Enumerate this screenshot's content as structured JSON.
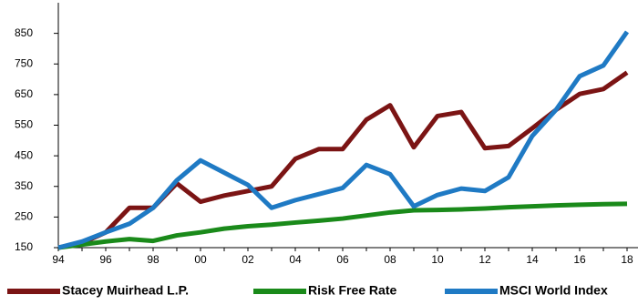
{
  "chart_data": {
    "type": "line",
    "categories": [
      "94",
      null,
      "96",
      null,
      "98",
      null,
      "00",
      null,
      "02",
      null,
      "04",
      null,
      "06",
      null,
      "08",
      null,
      "10",
      null,
      "12",
      null,
      "14",
      null,
      "16",
      null,
      "18"
    ],
    "series": [
      {
        "name": "Stacey Muirhead L.P.",
        "color": "#7b1414",
        "values": [
          150,
          165,
          200,
          280,
          280,
          360,
          300,
          320,
          335,
          350,
          440,
          472,
          472,
          568,
          615,
          478,
          580,
          593,
          475,
          482,
          540,
          600,
          652,
          668,
          722
        ]
      },
      {
        "name": "Risk Free Rate",
        "color": "#1a8a1a",
        "values": [
          150,
          160,
          170,
          178,
          172,
          190,
          200,
          212,
          220,
          225,
          232,
          238,
          245,
          255,
          265,
          272,
          273,
          275,
          278,
          282,
          285,
          288,
          290,
          292,
          293
        ]
      },
      {
        "name": "MSCI World Index",
        "color": "#1f7ac4",
        "values": [
          150,
          170,
          200,
          228,
          280,
          370,
          435,
          395,
          355,
          280,
          305,
          325,
          345,
          420,
          390,
          285,
          322,
          343,
          335,
          380,
          515,
          600,
          710,
          745,
          855
        ]
      }
    ],
    "ylim": [
      150,
      950
    ],
    "yticks": [
      150,
      250,
      350,
      450,
      550,
      650,
      750,
      850
    ]
  }
}
